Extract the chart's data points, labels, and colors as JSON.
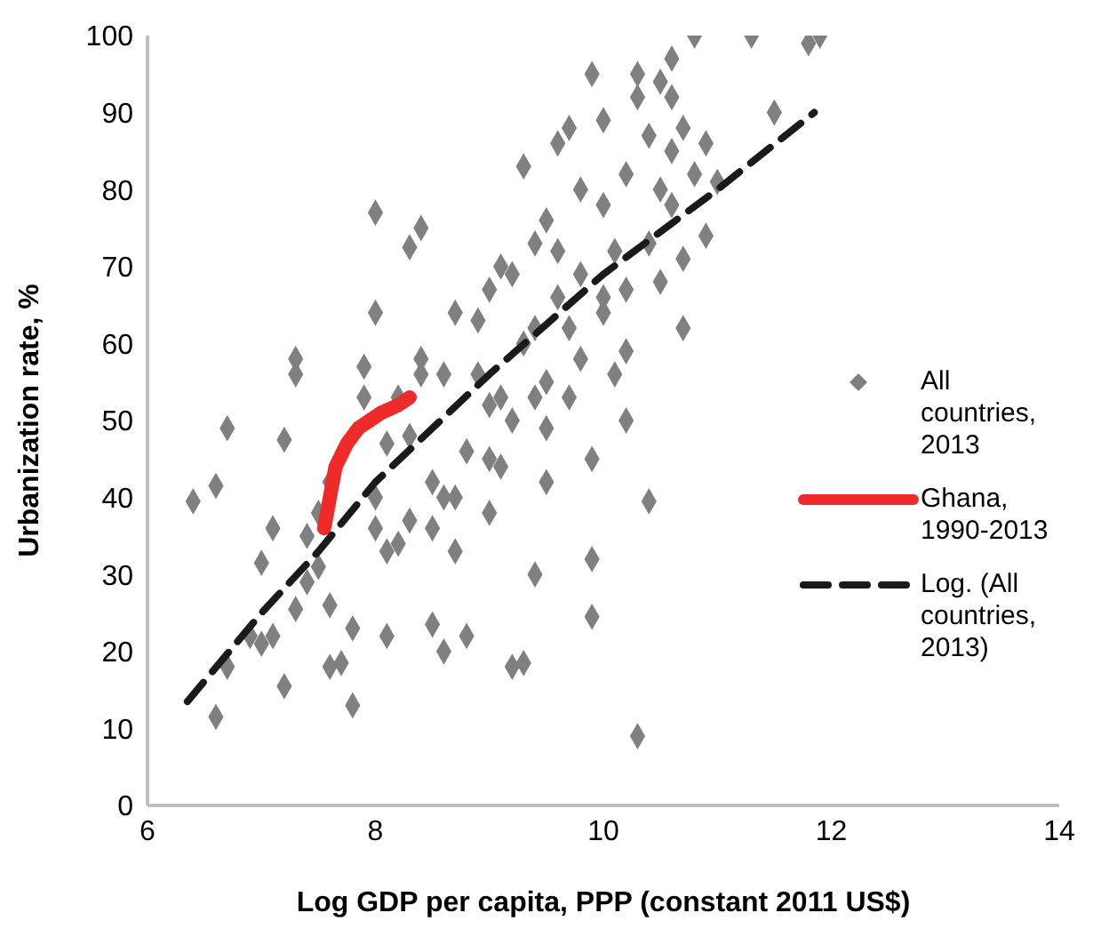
{
  "chart_data": {
    "type": "scatter",
    "xlabel": "Log GDP per capita, PPP (constant 2011 US$)",
    "ylabel": "Urbanization rate, %",
    "xlim": [
      6,
      14
    ],
    "xticks": [
      6,
      8,
      10,
      12,
      14
    ],
    "ylim": [
      0,
      100
    ],
    "yticks": [
      0,
      10,
      20,
      30,
      40,
      50,
      60,
      70,
      80,
      90,
      100
    ],
    "grid": false,
    "legend": "right",
    "series": [
      {
        "name": "All countries, 2013",
        "marker": "diamond",
        "color": "#808080",
        "x": [
          6.4,
          6.6,
          6.7,
          6.6,
          6.7,
          6.9,
          7.0,
          7.1,
          7.2,
          7.2,
          7.3,
          7.3,
          7.3,
          7.4,
          7.5,
          7.5,
          7.6,
          7.6,
          7.6,
          7.7,
          7.8,
          7.8,
          7.9,
          7.9,
          8.0,
          8.0,
          8.0,
          8.0,
          8.1,
          8.1,
          8.2,
          8.2,
          8.3,
          8.3,
          8.3,
          8.4,
          8.4,
          8.4,
          8.5,
          8.5,
          8.5,
          8.6,
          8.6,
          8.7,
          8.7,
          8.8,
          8.8,
          8.9,
          8.9,
          9.0,
          9.0,
          9.0,
          9.1,
          9.1,
          9.1,
          9.2,
          9.2,
          9.3,
          9.3,
          9.3,
          9.4,
          9.4,
          9.4,
          9.4,
          9.5,
          9.5,
          9.5,
          9.6,
          9.6,
          9.6,
          9.7,
          9.7,
          9.7,
          9.8,
          9.8,
          9.8,
          9.9,
          9.9,
          9.9,
          9.9,
          10.0,
          10.0,
          10.0,
          10.0,
          10.1,
          10.1,
          10.2,
          10.2,
          10.2,
          10.2,
          10.3,
          10.3,
          10.3,
          10.4,
          10.4,
          10.4,
          10.5,
          10.5,
          10.5,
          10.6,
          10.6,
          10.6,
          10.7,
          10.7,
          10.7,
          10.8,
          10.8,
          10.9,
          11.3,
          11.5,
          11.9,
          11.8,
          10.6,
          10.9,
          11.0,
          7.1,
          7.4,
          7.0,
          8.1,
          8.6,
          9.0,
          9.5,
          8.7,
          9.2
        ],
        "values": [
          39.5,
          41.5,
          49,
          11.5,
          18,
          22,
          31.5,
          36,
          47.5,
          15.5,
          58,
          56,
          25.5,
          29,
          38,
          31,
          42,
          26,
          18,
          18.5,
          23,
          13,
          57,
          53,
          77,
          64,
          40,
          36,
          33,
          22,
          34,
          53,
          72.5,
          48,
          37,
          56,
          75,
          58,
          42,
          36,
          23.5,
          20,
          40,
          33,
          64,
          46,
          22,
          56,
          63,
          67,
          38,
          45,
          44,
          70,
          53,
          69,
          18,
          18.5,
          60,
          83,
          62,
          73,
          53,
          30,
          76,
          55,
          49,
          66,
          72,
          86,
          88,
          62,
          53,
          58,
          69,
          80,
          95,
          45,
          32,
          24.5,
          89,
          78,
          64,
          66,
          72,
          56,
          82,
          67,
          59,
          50,
          95,
          9,
          92,
          87,
          73,
          39.5,
          80,
          94,
          68,
          78,
          85,
          97,
          88,
          71,
          62,
          100,
          82,
          74,
          100,
          90,
          100,
          99,
          92,
          86,
          81,
          22,
          35,
          21,
          47,
          56,
          52,
          42,
          40,
          50
        ]
      },
      {
        "name": "Ghana, 1990-2013",
        "type": "line",
        "line_style": "solid",
        "color": "#ee2b2b",
        "x": [
          7.55,
          7.6,
          7.65,
          7.75,
          7.85,
          7.95,
          8.05,
          8.2,
          8.3
        ],
        "values": [
          36,
          40,
          44,
          47,
          49,
          50,
          51,
          52,
          53
        ]
      },
      {
        "name": "Log. (All countries, 2013)",
        "type": "line",
        "line_style": "dashed",
        "color": "#1a1a1a",
        "x": [
          6.35,
          7,
          7.5,
          8,
          9,
          10,
          11,
          11.85
        ],
        "values": [
          13.5,
          25,
          33,
          42,
          56,
          69,
          80,
          90
        ]
      }
    ]
  }
}
